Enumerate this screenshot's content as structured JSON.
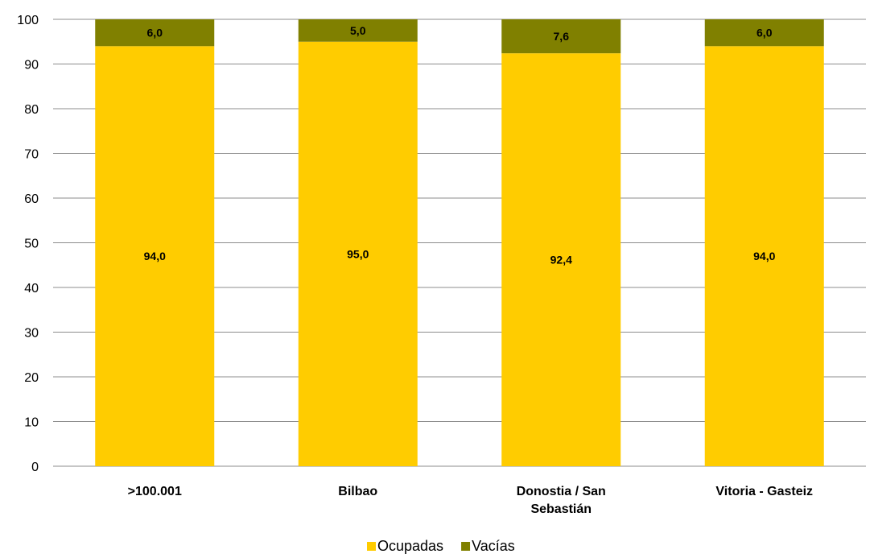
{
  "chart_data": {
    "type": "bar",
    "stacked": true,
    "categories": [
      ">100.001",
      "Bilbao",
      "Donostia / San Sebastián",
      "Vitoria - Gasteiz"
    ],
    "category_lines": [
      [
        ">100.001"
      ],
      [
        "Bilbao"
      ],
      [
        "Donostia / San",
        "Sebastián"
      ],
      [
        "Vitoria - Gasteiz"
      ]
    ],
    "series": [
      {
        "name": "Ocupadas",
        "values": [
          94.0,
          95.0,
          92.4,
          94.0
        ],
        "labels": [
          "94,0",
          "95,0",
          "92,4",
          "94,0"
        ],
        "color": "#ffcc00"
      },
      {
        "name": "Vacías",
        "values": [
          6.0,
          5.0,
          7.6,
          6.0
        ],
        "labels": [
          "6,0",
          "5,0",
          "7,6",
          "6,0"
        ],
        "color": "#808000"
      }
    ],
    "ylim": [
      0,
      100
    ],
    "yticks": [
      0,
      10,
      20,
      30,
      40,
      50,
      60,
      70,
      80,
      90,
      100
    ],
    "grid": true,
    "legend_position": "bottom",
    "title": "",
    "xlabel": "",
    "ylabel": ""
  }
}
